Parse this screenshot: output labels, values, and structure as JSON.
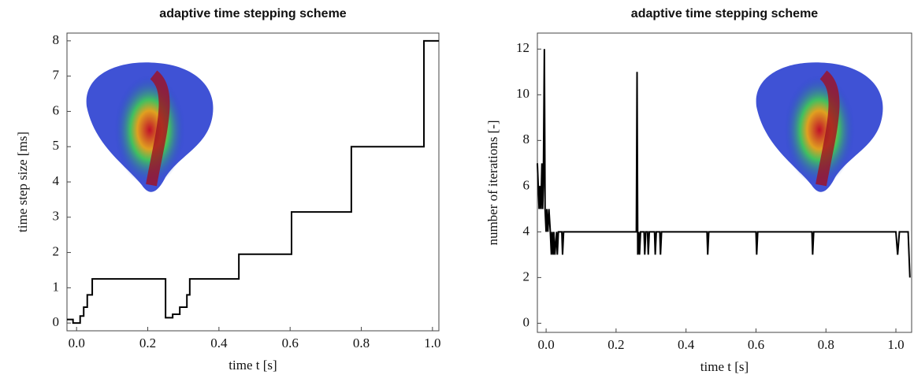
{
  "chart_data": [
    {
      "type": "line",
      "title": "adaptive time stepping scheme",
      "x_label": "time t [s]",
      "y_label": "time step size [ms]",
      "xlim": [
        -0.027,
        1.018
      ],
      "ylim": [
        -0.22,
        8.22
      ],
      "xticks": [
        {
          "value": 0,
          "label": "0.0"
        },
        0.2,
        0.4,
        0.6,
        0.8,
        {
          "value": 1,
          "label": "1.0"
        }
      ],
      "yticks": [
        0,
        1,
        2,
        3,
        4,
        5,
        6,
        7,
        8
      ],
      "series": [
        {
          "color": "#000000",
          "x": [
            -0.027,
            -0.01,
            -0.01,
            0.01,
            0.01,
            0.02,
            0.02,
            0.03,
            0.03,
            0.044,
            0.044,
            0.25,
            0.25,
            0.27,
            0.27,
            0.29,
            0.29,
            0.31,
            0.31,
            0.318,
            0.318,
            0.456,
            0.456,
            0.604,
            0.604,
            0.772,
            0.772,
            0.976,
            0.976,
            1.018
          ],
          "values": [
            0.1,
            0.1,
            0,
            0,
            0.2,
            0.2,
            0.45,
            0.45,
            0.8,
            0.8,
            1.25,
            1.25,
            0.15,
            0.15,
            0.25,
            0.25,
            0.45,
            0.45,
            0.8,
            0.8,
            1.25,
            1.25,
            1.95,
            1.95,
            3.15,
            3.15,
            5,
            5,
            8,
            8
          ]
        }
      ]
    },
    {
      "type": "line",
      "title": "adaptive time stepping scheme",
      "x_label": "time t [s]",
      "y_label": "number of iterations [-]",
      "xlim": [
        -0.025,
        1.045
      ],
      "ylim": [
        -0.4,
        12.7
      ],
      "xticks": [
        {
          "value": 0,
          "label": "0.0"
        },
        0.2,
        0.4,
        0.6,
        0.8,
        {
          "value": 1,
          "label": "1.0"
        }
      ],
      "yticks": [
        0,
        2,
        4,
        6,
        8,
        10,
        12
      ],
      "series": [
        {
          "color": "#000000",
          "x": [
            -0.025,
            -0.02,
            -0.018,
            -0.015,
            -0.012,
            -0.01,
            -0.008,
            -0.005,
            -0.003,
            0,
            0.002,
            0.005,
            0.008,
            0.012,
            0.015,
            0.017,
            0.02,
            0.022,
            0.025,
            0.03,
            0.032,
            0.035,
            0.045,
            0.047,
            0.05,
            0.258,
            0.26,
            0.262,
            0.265,
            0.267,
            0.27,
            0.28,
            0.282,
            0.285,
            0.29,
            0.292,
            0.295,
            0.31,
            0.312,
            0.315,
            0.325,
            0.327,
            0.33,
            0.46,
            0.462,
            0.465,
            0.6,
            0.602,
            0.605,
            0.76,
            0.762,
            0.765,
            1.0,
            1.005,
            1.01,
            1.035,
            1.04
          ],
          "values": [
            7,
            5,
            6,
            5,
            7,
            5,
            6,
            12,
            5,
            4,
            5,
            4,
            5,
            4,
            3,
            4,
            3,
            4,
            3,
            4,
            3,
            4,
            4,
            3,
            4,
            4,
            11,
            3,
            4,
            3,
            4,
            4,
            3,
            4,
            4,
            3,
            4,
            4,
            3,
            4,
            4,
            3,
            4,
            4,
            3,
            4,
            4,
            3,
            4,
            4,
            3,
            4,
            4,
            3,
            4,
            4,
            2
          ]
        }
      ]
    }
  ]
}
